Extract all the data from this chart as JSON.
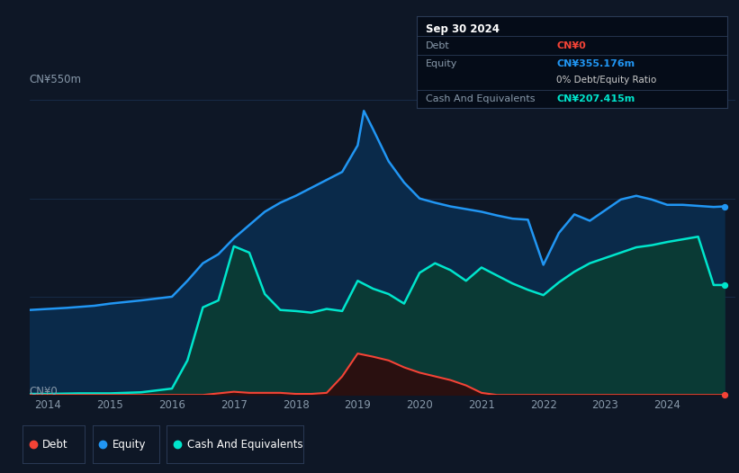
{
  "bg_color": "#0e1726",
  "plot_bg_color": "#0e1726",
  "ylabel_top": "CN¥550m",
  "ylabel_bottom": "CN¥0",
  "equity_color": "#2196f3",
  "equity_fill_color": "#0a2a4a",
  "cash_color": "#00e5cc",
  "cash_fill_color": "#0a3a35",
  "debt_color": "#f44336",
  "debt_fill_color": "#2a1010",
  "grid_color": "#1e3a5f",
  "tooltip_bg": "#050c18",
  "tooltip_title": "Sep 30 2024",
  "tooltip_debt_label": "Debt",
  "tooltip_debt_value": "CN¥0",
  "tooltip_equity_label": "Equity",
  "tooltip_equity_value": "CN¥355.176m",
  "tooltip_ratio": "0% Debt/Equity Ratio",
  "tooltip_cash_label": "Cash And Equivalents",
  "tooltip_cash_value": "CN¥207.415m",
  "legend_debt": "Debt",
  "legend_equity": "Equity",
  "legend_cash": "Cash And Equivalents",
  "equity_x": [
    2013.7,
    2014.0,
    2014.3,
    2014.75,
    2015.0,
    2015.5,
    2016.0,
    2016.25,
    2016.5,
    2016.75,
    2017.0,
    2017.25,
    2017.5,
    2017.75,
    2018.0,
    2018.25,
    2018.5,
    2018.75,
    2019.0,
    2019.1,
    2019.25,
    2019.5,
    2019.75,
    2020.0,
    2020.25,
    2020.5,
    2020.75,
    2021.0,
    2021.25,
    2021.5,
    2021.75,
    2022.0,
    2022.25,
    2022.5,
    2022.75,
    2023.0,
    2023.25,
    2023.5,
    2023.75,
    2024.0,
    2024.25,
    2024.5,
    2024.75,
    2024.92
  ],
  "equity_y": [
    160,
    162,
    164,
    168,
    172,
    178,
    185,
    215,
    248,
    265,
    295,
    320,
    345,
    362,
    375,
    390,
    405,
    420,
    470,
    535,
    500,
    440,
    400,
    370,
    362,
    355,
    350,
    345,
    338,
    332,
    330,
    245,
    305,
    340,
    328,
    348,
    368,
    375,
    368,
    358,
    358,
    356,
    354,
    355
  ],
  "cash_x": [
    2013.7,
    2014.0,
    2014.5,
    2015.0,
    2015.5,
    2016.0,
    2016.25,
    2016.5,
    2016.75,
    2017.0,
    2017.25,
    2017.5,
    2017.75,
    2018.0,
    2018.25,
    2018.5,
    2018.75,
    2019.0,
    2019.25,
    2019.5,
    2019.75,
    2020.0,
    2020.25,
    2020.5,
    2020.75,
    2021.0,
    2021.25,
    2021.5,
    2021.75,
    2022.0,
    2022.25,
    2022.5,
    2022.75,
    2023.0,
    2023.25,
    2023.5,
    2023.75,
    2024.0,
    2024.25,
    2024.5,
    2024.75,
    2024.92
  ],
  "cash_y": [
    2,
    2,
    3,
    3,
    5,
    12,
    65,
    165,
    178,
    280,
    268,
    190,
    160,
    158,
    155,
    162,
    158,
    215,
    200,
    190,
    172,
    230,
    248,
    235,
    215,
    240,
    225,
    210,
    198,
    188,
    212,
    232,
    248,
    258,
    268,
    278,
    282,
    288,
    293,
    298,
    207,
    207
  ],
  "debt_x": [
    2013.7,
    2014.0,
    2014.5,
    2015.0,
    2015.5,
    2016.0,
    2016.5,
    2016.75,
    2017.0,
    2017.25,
    2017.5,
    2017.75,
    2018.0,
    2018.25,
    2018.5,
    2018.75,
    2019.0,
    2019.25,
    2019.5,
    2019.75,
    2020.0,
    2020.25,
    2020.5,
    2020.75,
    2021.0,
    2021.25,
    2021.5,
    2021.75,
    2022.0,
    2022.5,
    2023.0,
    2023.5,
    2024.0,
    2024.5,
    2024.92
  ],
  "debt_y": [
    0,
    0,
    0,
    0,
    0,
    0,
    0,
    3,
    6,
    4,
    4,
    4,
    2,
    2,
    4,
    35,
    78,
    72,
    65,
    52,
    42,
    35,
    28,
    18,
    4,
    0,
    0,
    0,
    0,
    0,
    0,
    0,
    0,
    0,
    0
  ],
  "ylim": [
    0,
    570
  ],
  "xlim": [
    2013.7,
    2025.1
  ],
  "xticks": [
    2014,
    2015,
    2016,
    2017,
    2018,
    2019,
    2020,
    2021,
    2022,
    2023,
    2024
  ]
}
